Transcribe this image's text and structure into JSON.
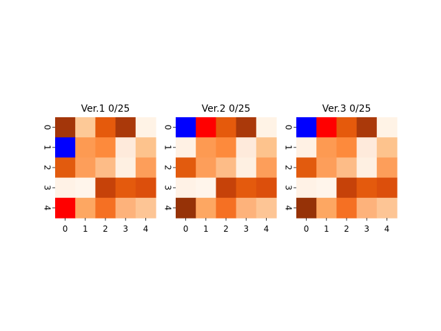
{
  "chart_data": [
    {
      "type": "heatmap",
      "title": "Ver.1 0/25",
      "x_ticks": [
        "0",
        "1",
        "2",
        "3",
        "4"
      ],
      "y_ticks": [
        "0",
        "1",
        "2",
        "3",
        "4"
      ],
      "cells": [
        [
          "#a3360a",
          "#fdc997",
          "#e55a0c",
          "#aa390a",
          "#fff3e6"
        ],
        [
          "#0000ff",
          "#fd9a52",
          "#fd8a3c",
          "#feeadb",
          "#fdc38d"
        ],
        [
          "#e25b0e",
          "#fd9e5a",
          "#fdbc87",
          "#fef0e2",
          "#fd9e5a"
        ],
        [
          "#fff2e6",
          "#fff5eb",
          "#c64209",
          "#e45a0d",
          "#dc4f0c"
        ],
        [
          "#ff0000",
          "#fda762",
          "#f57023",
          "#fdb27b",
          "#fdc595"
        ]
      ]
    },
    {
      "type": "heatmap",
      "title": "Ver.2 0/25",
      "x_ticks": [
        "0",
        "1",
        "2",
        "3",
        "4"
      ],
      "y_ticks": [
        "0",
        "1",
        "2",
        "3",
        "4"
      ],
      "cells": [
        [
          "#0000ff",
          "#ff0000",
          "#e55a0c",
          "#aa390a",
          "#fff3e6"
        ],
        [
          "#fff1e4",
          "#fd9a52",
          "#fd8a3c",
          "#feeadb",
          "#fdc38d"
        ],
        [
          "#e25b0e",
          "#fd9e5a",
          "#fdbc87",
          "#fef0e2",
          "#fd9e5a"
        ],
        [
          "#fff2e6",
          "#fff5eb",
          "#c64209",
          "#e45a0d",
          "#dc4f0c"
        ],
        [
          "#963207",
          "#fda762",
          "#f57023",
          "#fdb27b",
          "#fdc595"
        ]
      ]
    },
    {
      "type": "heatmap",
      "title": "Ver.3 0/25",
      "x_ticks": [
        "0",
        "1",
        "2",
        "3",
        "4"
      ],
      "y_ticks": [
        "0",
        "1",
        "2",
        "3",
        "4"
      ],
      "cells": [
        [
          "#0000ff",
          "#ff0000",
          "#e55a0c",
          "#aa390a",
          "#fff3e6"
        ],
        [
          "#fff1e4",
          "#fd9a52",
          "#fd8a3c",
          "#feeadb",
          "#fdc38d"
        ],
        [
          "#e25b0e",
          "#fd9e5a",
          "#fdbc87",
          "#fef0e2",
          "#fd9e5a"
        ],
        [
          "#fff2e6",
          "#fff5eb",
          "#c64209",
          "#e45a0d",
          "#dc4f0c"
        ],
        [
          "#963207",
          "#fda762",
          "#f57023",
          "#fdb27b",
          "#fdc595"
        ]
      ]
    }
  ]
}
